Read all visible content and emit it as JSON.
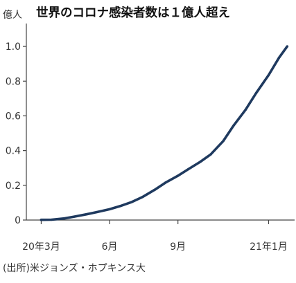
{
  "chart_data": {
    "type": "line",
    "title": "世界のコロナ感染者数は１億人超え",
    "ylabel": "億人",
    "xlabel": "",
    "source": "(出所)米ジョンズ・ホプキンス大",
    "ylim": [
      0,
      1.1
    ],
    "yticks": [
      {
        "value": 0,
        "label": "0"
      },
      {
        "value": 0.2,
        "label": "0.2"
      },
      {
        "value": 0.4,
        "label": "0.4"
      },
      {
        "value": 0.6,
        "label": "0.6"
      },
      {
        "value": 0.8,
        "label": "0.8"
      },
      {
        "value": 1.0,
        "label": "1.0"
      }
    ],
    "xticks": [
      {
        "date": "2020-03-01",
        "label": "20年3月"
      },
      {
        "date": "2020-06-01",
        "label": "6月"
      },
      {
        "date": "2020-09-01",
        "label": "9月"
      },
      {
        "date": "2021-01-01",
        "label": "21年1月"
      }
    ],
    "xlim": [
      "2020-02-10",
      "2021-02-05"
    ],
    "grid": false,
    "series": [
      {
        "color": "#1f3a5f",
        "x": [
          "2020-03-01",
          "2020-03-15",
          "2020-04-01",
          "2020-04-15",
          "2020-05-01",
          "2020-05-15",
          "2020-06-01",
          "2020-06-15",
          "2020-07-01",
          "2020-07-15",
          "2020-08-01",
          "2020-08-15",
          "2020-09-01",
          "2020-09-15",
          "2020-10-01",
          "2020-10-15",
          "2020-11-01",
          "2020-11-15",
          "2020-12-01",
          "2020-12-15",
          "2021-01-01",
          "2021-01-15",
          "2021-01-26"
        ],
        "y": [
          0.001,
          0.002,
          0.009,
          0.02,
          0.033,
          0.046,
          0.062,
          0.08,
          0.104,
          0.132,
          0.175,
          0.215,
          0.255,
          0.293,
          0.335,
          0.378,
          0.455,
          0.545,
          0.635,
          0.73,
          0.835,
          0.935,
          1.0
        ]
      }
    ]
  }
}
